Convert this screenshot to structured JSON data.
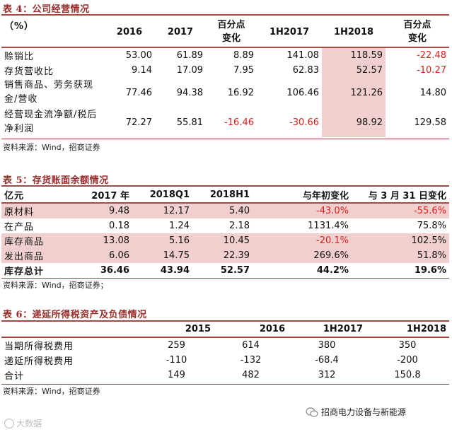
{
  "table4": {
    "title": "表 4：公司经营情况",
    "unit_label": "（%）",
    "headers": [
      "2016",
      "2017",
      "百分点\n变化",
      "1H2017",
      "1H2018",
      "百分点\n变化"
    ],
    "rows": [
      {
        "label": "赊销比",
        "values": [
          "53.00",
          "61.89",
          "8.89",
          "141.08",
          "118.59",
          "-22.48"
        ]
      },
      {
        "label": "存货营收比",
        "values": [
          "9.14",
          "17.09",
          "7.95",
          "62.83",
          "52.57",
          "-10.27"
        ]
      },
      {
        "label": "销售商品、劳务获现金/营收",
        "values": [
          "77.46",
          "94.38",
          "16.92",
          "106.46",
          "121.26",
          "14.80"
        ]
      },
      {
        "label": "经营现金流净额/税后净利润",
        "values": [
          "72.27",
          "55.81",
          "-16.46",
          "-30.66",
          "98.92",
          "129.58"
        ]
      }
    ],
    "source": "资料来源：Wind，招商证券"
  },
  "table5": {
    "title": "表 5：存货账面余额情况",
    "headers": [
      "亿元",
      "2017 年",
      "2018Q1",
      "2018H1",
      "与年初变化",
      "与 3 月 31 日变化"
    ],
    "rows": [
      {
        "label": "原材料",
        "values": [
          "9.48",
          "12.17",
          "5.40",
          "-43.0%",
          "-55.6%"
        ]
      },
      {
        "label": "在产品",
        "values": [
          "0.18",
          "1.24",
          "2.18",
          "1131.4%",
          "75.8%"
        ]
      },
      {
        "label": "库存商品",
        "values": [
          "13.08",
          "5.16",
          "10.45",
          "-20.1%",
          "102.5%"
        ]
      },
      {
        "label": "发出商品",
        "values": [
          "6.06",
          "14.75",
          "22.39",
          "269.6%",
          "51.8%"
        ]
      },
      {
        "label": "库存总计",
        "values": [
          "36.46",
          "43.94",
          "52.57",
          "44.2%",
          "19.6%"
        ]
      }
    ],
    "source": "资料来源：Wind，招商证券；"
  },
  "table6": {
    "title": "表 6：递延所得税资产及负债情况",
    "headers": [
      "",
      "2015",
      "2016",
      "1H2017",
      "1H2018"
    ],
    "rows": [
      {
        "label": "当期所得税费用",
        "values": [
          "259",
          "614",
          "380",
          "350"
        ]
      },
      {
        "label": "递延所得税费用",
        "values": [
          "-110",
          "-132",
          "-68.4",
          "-200"
        ]
      },
      {
        "label": "合计",
        "values": [
          "149",
          "482",
          "312",
          "150.8"
        ]
      }
    ],
    "source": "资料来源：Wind，招商证券"
  },
  "watermark_right": "招商电力设备与新能源",
  "watermark_left": "大数据"
}
